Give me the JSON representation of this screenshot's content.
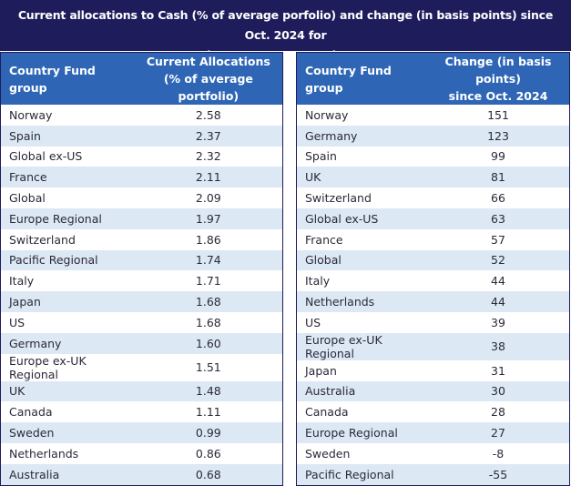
{
  "title_line1": "Current allocations to Cash (% of average porfolio) and change (in basis points) since Oct. 2024 for",
  "title_line2": "major DM Country Fund groups",
  "chart_data": [
    {
      "type": "table",
      "columns": [
        "Country Fund group",
        "Current Allocations\n(% of average portfolio)"
      ],
      "header_name": "Country Fund group",
      "header_value_line1": "Current Allocations",
      "header_value_line2": "(% of average portfolio)",
      "rows": [
        {
          "group": "Norway",
          "value": "2.58"
        },
        {
          "group": "Spain",
          "value": "2.37"
        },
        {
          "group": "Global ex-US",
          "value": "2.32"
        },
        {
          "group": "France",
          "value": "2.11"
        },
        {
          "group": "Global",
          "value": "2.09"
        },
        {
          "group": "Europe Regional",
          "value": "1.97"
        },
        {
          "group": "Switzerland",
          "value": "1.86"
        },
        {
          "group": "Pacific Regional",
          "value": "1.74"
        },
        {
          "group": "Italy",
          "value": "1.71"
        },
        {
          "group": "Japan",
          "value": "1.68"
        },
        {
          "group": "US",
          "value": "1.68"
        },
        {
          "group": "Germany",
          "value": "1.60"
        },
        {
          "group": "Europe ex-UK Regional",
          "value": "1.51"
        },
        {
          "group": "UK",
          "value": "1.48"
        },
        {
          "group": "Canada",
          "value": "1.11"
        },
        {
          "group": "Sweden",
          "value": "0.99"
        },
        {
          "group": "Netherlands",
          "value": "0.86"
        },
        {
          "group": "Australia",
          "value": "0.68"
        }
      ]
    },
    {
      "type": "table",
      "columns": [
        "Country Fund group",
        "Change (in basis points)\nsince Oct. 2024"
      ],
      "header_name": "Country Fund group",
      "header_value_line1": "Change (in basis points)",
      "header_value_line2": "since Oct. 2024",
      "rows": [
        {
          "group": "Norway",
          "value": "151"
        },
        {
          "group": "Germany",
          "value": "123"
        },
        {
          "group": "Spain",
          "value": "99"
        },
        {
          "group": "UK",
          "value": "81"
        },
        {
          "group": "Switzerland",
          "value": "66"
        },
        {
          "group": "Global ex-US",
          "value": "63"
        },
        {
          "group": "France",
          "value": "57"
        },
        {
          "group": "Global",
          "value": "52"
        },
        {
          "group": "Italy",
          "value": "44"
        },
        {
          "group": "Netherlands",
          "value": "44"
        },
        {
          "group": "US",
          "value": "39"
        },
        {
          "group": "Europe ex-UK Regional",
          "value": "38"
        },
        {
          "group": "Japan",
          "value": "31"
        },
        {
          "group": "Australia",
          "value": "30"
        },
        {
          "group": "Canada",
          "value": "28"
        },
        {
          "group": "Europe Regional",
          "value": "27"
        },
        {
          "group": "Sweden",
          "value": "-8"
        },
        {
          "group": "Pacific Regional",
          "value": "-55"
        }
      ]
    }
  ]
}
